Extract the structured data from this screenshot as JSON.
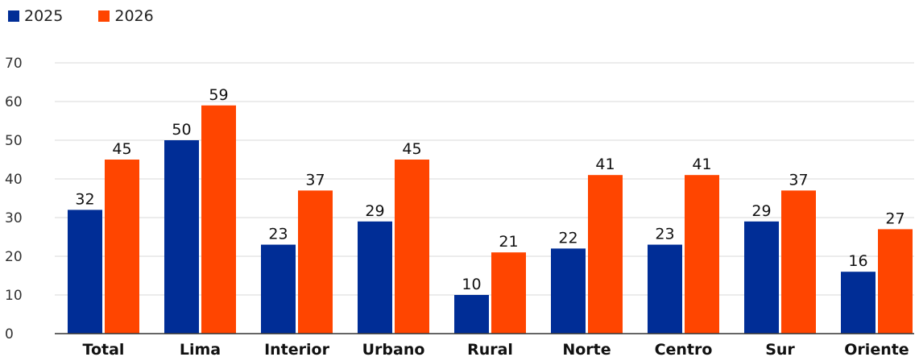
{
  "chart_data": {
    "type": "bar",
    "categories": [
      "Total",
      "Lima",
      "Interior",
      "Urbano",
      "Rural",
      "Norte",
      "Centro",
      "Sur",
      "Oriente"
    ],
    "series": [
      {
        "name": "2025",
        "values": [
          32,
          50,
          23,
          29,
          10,
          22,
          23,
          29,
          16
        ]
      },
      {
        "name": "2026",
        "values": [
          45,
          59,
          37,
          45,
          21,
          41,
          41,
          37,
          27
        ]
      }
    ],
    "yticks": [
      0,
      10,
      20,
      30,
      40,
      50,
      60,
      70
    ],
    "ylim": [
      0,
      70
    ],
    "grid": true,
    "legend_position": "top-left",
    "colors": {
      "2025": "#002d96",
      "2026": "#ff4500"
    }
  }
}
